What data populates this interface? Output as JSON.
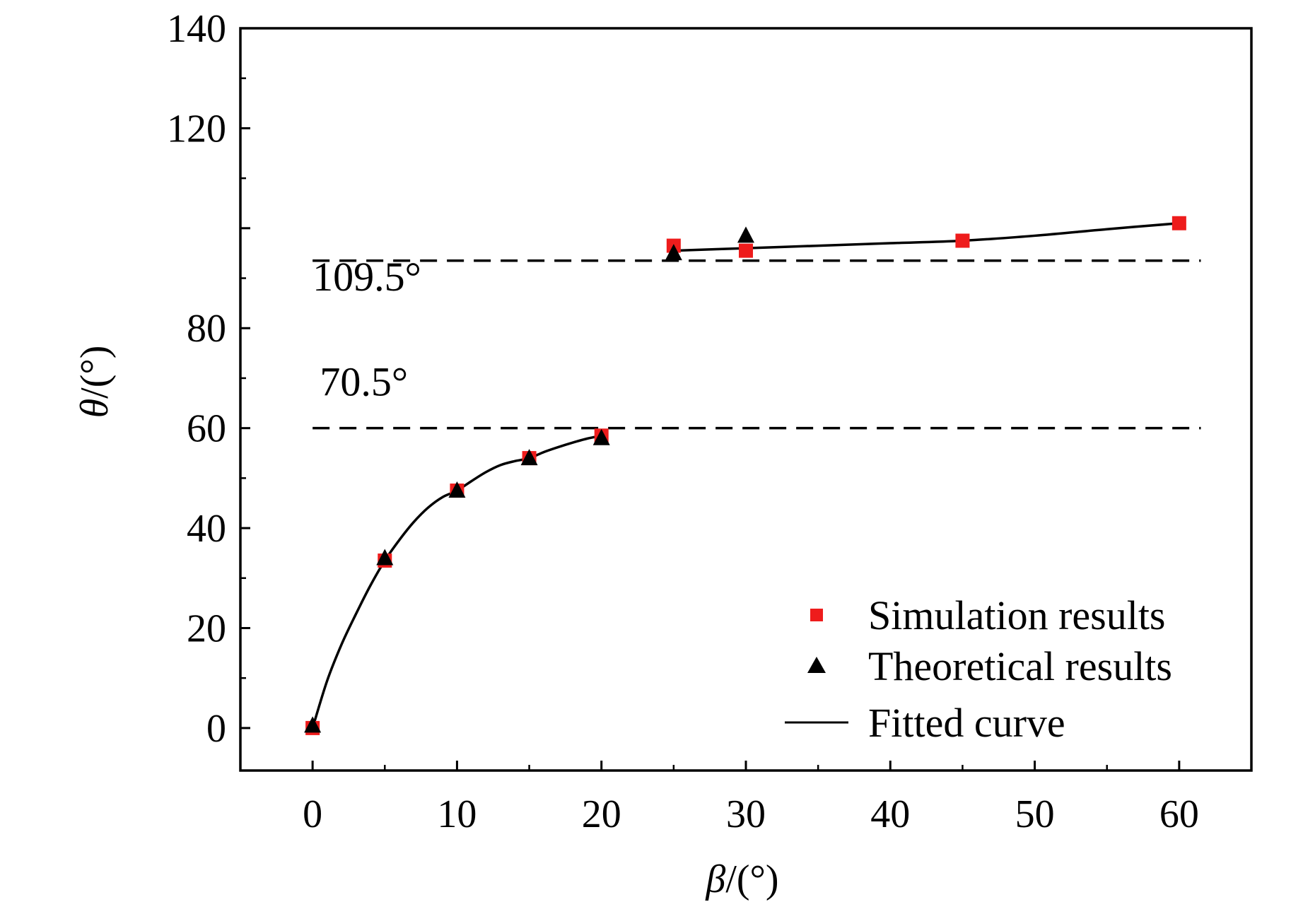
{
  "chart_data": {
    "type": "scatter",
    "title": "",
    "xlabel_symbol": "β",
    "xlabel_unit": "/(°)",
    "ylabel_symbol": "θ",
    "ylabel_unit": "/(°)",
    "xlim": [
      -5,
      65
    ],
    "ylim": [
      -8.5,
      140
    ],
    "xticks": [
      0,
      10,
      20,
      30,
      40,
      50,
      60
    ],
    "yticks": [
      0,
      20,
      40,
      60,
      80,
      100,
      120,
      140
    ],
    "ytick_labels": [
      "0",
      "20",
      "40",
      "60",
      "80",
      "",
      "120",
      "140"
    ],
    "grid": false,
    "legend_position": "bottom-right",
    "series": [
      {
        "name": "Simulation results",
        "marker": "square",
        "color": "#ee1c1c",
        "x": [
          0,
          5,
          10,
          15,
          20,
          25,
          30,
          45,
          60
        ],
        "y": [
          0,
          33.5,
          47.5,
          54,
          58.5,
          96.5,
          95.5,
          97.5,
          101
        ]
      },
      {
        "name": "Theoretical results",
        "marker": "triangle",
        "color": "#000000",
        "x": [
          0,
          5,
          10,
          15,
          20,
          25,
          30
        ],
        "y": [
          0.5,
          34,
          47.5,
          54,
          58,
          95,
          98.5
        ]
      },
      {
        "name": "Fitted curve",
        "marker": "line",
        "color": "#000000",
        "segments": [
          {
            "x": [
              0,
              1,
              2,
              3,
              4,
              5,
              6,
              7,
              8,
              9,
              10,
              11,
              12,
              13,
              14,
              15,
              16,
              17,
              18,
              19,
              20
            ],
            "y": [
              0,
              9.4,
              16.7,
              22.8,
              28.5,
              33.5,
              37.6,
              41.2,
              44.1,
              46.2,
              47.5,
              49.4,
              51.2,
              52.6,
              53.4,
              54,
              55.2,
              56.2,
              57.1,
              57.9,
              58.5
            ]
          },
          {
            "x": [
              25,
              30,
              35,
              40,
              45,
              50,
              55,
              60
            ],
            "y": [
              95.5,
              96.0,
              96.5,
              97.0,
              97.5,
              98.5,
              99.8,
              101
            ]
          }
        ]
      }
    ],
    "reference_lines": [
      {
        "y": 93.5,
        "style": "dashed",
        "label": "109.5°",
        "label_x": 0,
        "label_y": 87.5
      },
      {
        "y": 60,
        "style": "dashed",
        "label": "70.5°",
        "label_x": 0.5,
        "label_y": 66.5
      }
    ]
  }
}
